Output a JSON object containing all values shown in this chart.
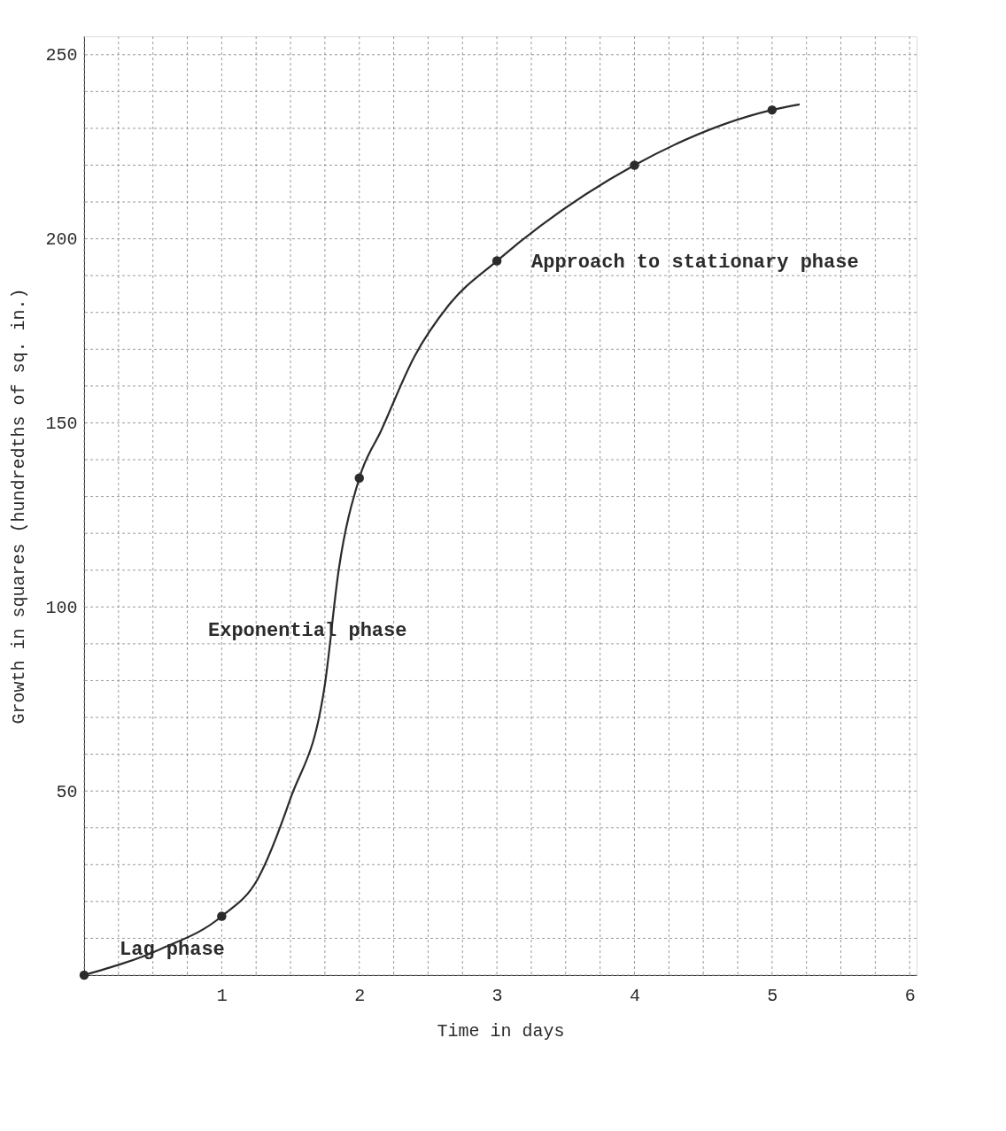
{
  "chart_data": {
    "type": "line",
    "xlabel": "Time in days",
    "ylabel": "Growth in squares (hundredths of sq. in.)",
    "xlim": [
      0,
      6.05
    ],
    "ylim": [
      0,
      255
    ],
    "xticks": [
      {
        "value": 0,
        "label": null
      },
      {
        "value": 0.25,
        "label": null
      },
      {
        "value": 0.5,
        "label": null
      },
      {
        "value": 0.75,
        "label": null
      },
      1,
      {
        "value": 1.25,
        "label": null
      },
      {
        "value": 1.5,
        "label": null
      },
      {
        "value": 1.75,
        "label": null
      },
      2,
      {
        "value": 2.25,
        "label": null
      },
      {
        "value": 2.5,
        "label": null
      },
      {
        "value": 2.75,
        "label": null
      },
      3,
      {
        "value": 3.25,
        "label": null
      },
      {
        "value": 3.5,
        "label": null
      },
      {
        "value": 3.75,
        "label": null
      },
      4,
      {
        "value": 4.25,
        "label": null
      },
      {
        "value": 4.5,
        "label": null
      },
      {
        "value": 4.75,
        "label": null
      },
      5,
      {
        "value": 5.25,
        "label": null
      },
      {
        "value": 5.5,
        "label": null
      },
      {
        "value": 5.75,
        "label": null
      },
      6
    ],
    "yticks": [
      {
        "value": 0,
        "label": null
      },
      {
        "value": 10,
        "label": null
      },
      {
        "value": 20,
        "label": null
      },
      {
        "value": 30,
        "label": null
      },
      {
        "value": 40,
        "label": null
      },
      50,
      {
        "value": 60,
        "label": null
      },
      {
        "value": 70,
        "label": null
      },
      {
        "value": 80,
        "label": null
      },
      {
        "value": 90,
        "label": null
      },
      100,
      {
        "value": 110,
        "label": null
      },
      {
        "value": 120,
        "label": null
      },
      {
        "value": 130,
        "label": null
      },
      {
        "value": 140,
        "label": null
      },
      150,
      {
        "value": 160,
        "label": null
      },
      {
        "value": 170,
        "label": null
      },
      {
        "value": 180,
        "label": null
      },
      {
        "value": 190,
        "label": null
      },
      200,
      {
        "value": 210,
        "label": null
      },
      {
        "value": 220,
        "label": null
      },
      {
        "value": 230,
        "label": null
      },
      {
        "value": 240,
        "label": null
      },
      250
    ],
    "grid": true,
    "series": [
      {
        "color": "#2b2b2b",
        "marker": "none",
        "line_style": "solid",
        "x": [
          0,
          0.55,
          1,
          1.26,
          1.5,
          1.75,
          1.85,
          2,
          2.16,
          2.4,
          2.65,
          3,
          4,
          5,
          5.2
        ],
        "values": [
          0,
          7,
          16,
          26,
          48,
          79,
          110,
          135,
          148,
          168,
          182,
          194,
          220,
          235,
          236.5
        ]
      },
      {
        "type": "scatter",
        "color": "#2b2b2b",
        "marker": "circle",
        "x": [
          0,
          1,
          2,
          3,
          4,
          5
        ],
        "values": [
          0,
          16,
          135,
          194,
          220,
          235
        ]
      }
    ],
    "annotations": [
      "Lag phase",
      "Exponential phase",
      "Approach to stationary phase"
    ]
  }
}
